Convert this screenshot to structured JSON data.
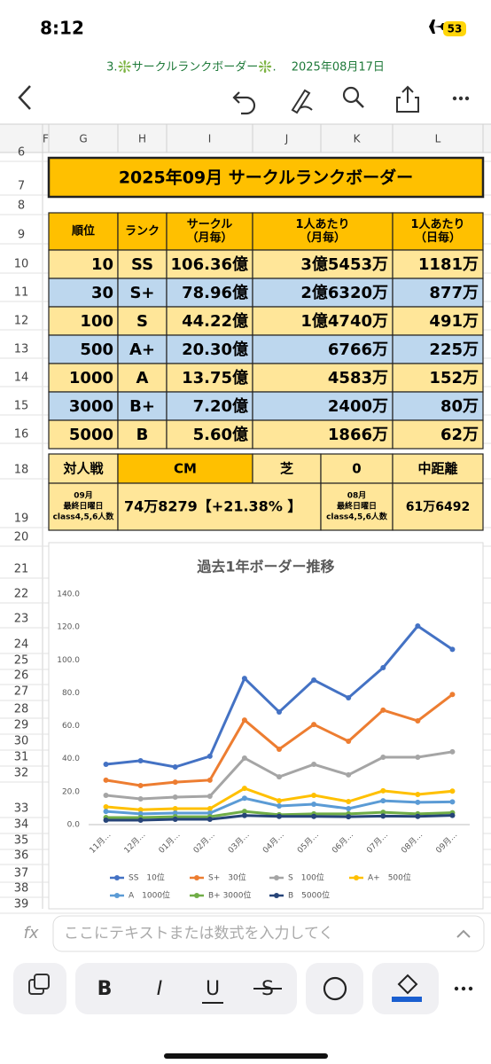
{
  "status": {
    "time": "8:12",
    "battery": "53"
  },
  "doc_title": "3.❇️サークルランクボーダー❇️.　 2025年08月17日",
  "columns": [
    "F",
    "G",
    "H",
    "I",
    "J",
    "K",
    "L"
  ],
  "row_numbers": [
    "6",
    "7",
    "8",
    "9",
    "10",
    "11",
    "12",
    "13",
    "14",
    "15",
    "16",
    "18",
    "19",
    "20",
    "21",
    "22",
    "23",
    "24",
    "25",
    "26",
    "27",
    "28",
    "29",
    "30",
    "31",
    "32",
    "33",
    "34",
    "35",
    "36",
    "37",
    "38",
    "39"
  ],
  "table": {
    "title": "2025年09月 サークルランクボーダー",
    "headers": [
      [
        "順位"
      ],
      [
        "ランク"
      ],
      [
        "サークル",
        "（月毎）"
      ],
      [
        "1人あたり",
        "（月毎）"
      ],
      [
        "1人あたり",
        "（日毎）"
      ]
    ],
    "rows": [
      [
        "10",
        "SS",
        "106.36億",
        "3億5453万",
        "1181万"
      ],
      [
        "30",
        "S+",
        "78.96億",
        "2億6320万",
        "877万"
      ],
      [
        "100",
        "S",
        "44.22億",
        "1億4740万",
        "491万"
      ],
      [
        "500",
        "A+",
        "20.30億",
        "6766万",
        "225万"
      ],
      [
        "1000",
        "A",
        "13.75億",
        "4583万",
        "152万"
      ],
      [
        "3000",
        "B+",
        "7.20億",
        "2400万",
        "80万"
      ],
      [
        "5000",
        "B",
        "5.60億",
        "1866万",
        "62万"
      ]
    ],
    "info_row": [
      "対人戦",
      "CM",
      "芝",
      "0",
      "中距離"
    ],
    "count_row": {
      "label_current": [
        "09月",
        "最終日曜日",
        "class4,5,6人数"
      ],
      "value_current": "74万8279【+21.38% 】",
      "label_previous": [
        "08月",
        "最終日曜日",
        "class4,5,6人数"
      ],
      "value_previous": "61万6492"
    }
  },
  "chart_data": {
    "type": "line",
    "title": "過去1年ボーダー推移",
    "categories": [
      "11月…",
      "12月…",
      "01月…",
      "02月…",
      "03月…",
      "04月…",
      "05月…",
      "06月…",
      "07月…",
      "08月…",
      "09月…"
    ],
    "ylim": [
      0,
      140
    ],
    "yticks": [
      {
        "value": 0,
        "label": "0.0"
      },
      {
        "value": 20,
        "label": "20.0"
      },
      {
        "value": 40,
        "label": "40.0"
      },
      {
        "value": 60,
        "label": "60.0"
      },
      {
        "value": 80,
        "label": "80.0"
      },
      {
        "value": 100,
        "label": "100.0"
      },
      {
        "value": 120,
        "label": "120.0"
      },
      {
        "value": 140,
        "label": "140.0"
      }
    ],
    "grid": false,
    "series": [
      {
        "name": "SS　10位",
        "color": "#4472c4",
        "values": [
          36.6,
          38.8,
          35,
          41.5,
          88.8,
          68.4,
          87.8,
          77,
          95.3,
          120.6,
          106.4
        ]
      },
      {
        "name": "S+　30位",
        "color": "#ed7d31",
        "values": [
          27,
          23.7,
          25.8,
          27,
          63.5,
          45.8,
          60.8,
          50.6,
          69.5,
          63,
          79
        ]
      },
      {
        "name": "S　100位",
        "color": "#a5a5a5",
        "values": [
          17.8,
          15.6,
          16.7,
          17.2,
          40.4,
          29,
          36.6,
          30.2,
          40.9,
          40.9,
          44.2
        ]
      },
      {
        "name": "A+　500位",
        "color": "#ffc000",
        "values": [
          10.8,
          9,
          9.7,
          9.7,
          22,
          14.5,
          17.8,
          14,
          20.5,
          18.3,
          20.3
        ]
      },
      {
        "name": "A　1000位",
        "color": "#5b9bd5",
        "values": [
          8,
          6.5,
          7,
          7,
          16,
          11.3,
          12.4,
          9.7,
          14.5,
          13.5,
          13.8
        ]
      },
      {
        "name": "B+ 3000位",
        "color": "#70ad47",
        "values": [
          4.3,
          4.3,
          4.8,
          4.8,
          8,
          6,
          6.5,
          6.5,
          7.5,
          6.5,
          7.2
        ]
      },
      {
        "name": "B　5000位",
        "color": "#264478",
        "values": [
          2.7,
          2.7,
          3.2,
          3.2,
          5.5,
          5,
          5,
          4.8,
          5.2,
          5,
          5.6
        ]
      }
    ]
  },
  "formula_placeholder": "ここにテキストまたは数式を入力してく",
  "format_buttons": [
    "B",
    "I",
    "U",
    "S"
  ]
}
